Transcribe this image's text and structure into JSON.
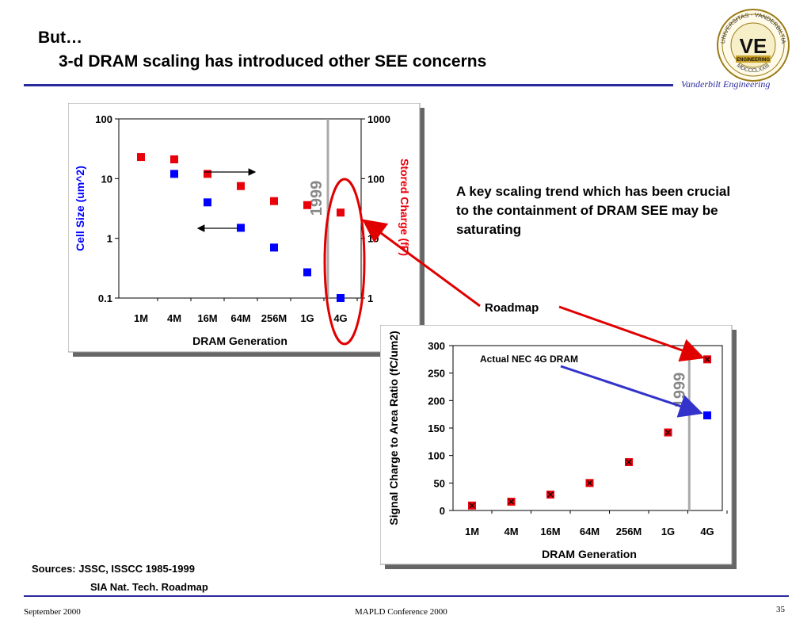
{
  "slide": {
    "title_line1": "But…",
    "title_line2": "3-d DRAM scaling has introduced other SEE concerns",
    "brand": "Vanderbilt Engineering",
    "note": "A key scaling trend which has been crucial to the containment of DRAM SEE may be saturating",
    "sources_line1": "Sources:  JSSC, ISSCC 1985-1999",
    "sources_line2": "SIA Nat. Tech. Roadmap",
    "footer_left": "September 2000",
    "footer_center": "MAPLD Conference 2000",
    "footer_right": "35",
    "logo_text": {
      "ring_top_left": "UNIVERSITAS",
      "ring_top_right": "VANDERBILTIA",
      "ring_bottom": "MDCCCLXXIII",
      "monogram": "VE",
      "banner": "ENGINEERING"
    }
  },
  "annotations": {
    "roadmap_label": "Roadmap",
    "actual_label": "Actual NEC 4G DRAM",
    "year_marker": "1999"
  },
  "colors": {
    "accent_blue": "#2a2aa0",
    "series_red": "#e8000b",
    "series_blue": "#0000ff",
    "marker_line": "#aaaaaa",
    "arrow_red": "#e00000",
    "arrow_blue": "#3333cc"
  },
  "chart_data": [
    {
      "type": "scatter",
      "categories": [
        "1M",
        "4M",
        "16M",
        "64M",
        "256M",
        "1G",
        "4G"
      ],
      "xlabel": "DRAM Generation",
      "ylabel": "Cell Size (um^2)",
      "ylabel_right": "Stored Charge (fF)",
      "y_scale": "log",
      "ylim": [
        0.1,
        100
      ],
      "yticks": [
        "100",
        "10",
        "1",
        "0.1"
      ],
      "y2_scale": "log",
      "y2lim": [
        1,
        1000
      ],
      "y2ticks": [
        "1000",
        "100",
        "10",
        "1"
      ],
      "grid": false,
      "series": [
        {
          "name": "Cell Size (um^2)",
          "axis": "left",
          "color": "#0000ff",
          "values": [
            null,
            12,
            4,
            1.5,
            0.7,
            0.27,
            0.1
          ]
        },
        {
          "name": "Stored Charge (fF)",
          "axis": "right",
          "color": "#e8000b",
          "values": [
            230,
            210,
            120,
            75,
            42,
            36,
            27
          ]
        }
      ],
      "vertical_marker": {
        "label": "1999",
        "between": [
          "1G",
          "4G"
        ]
      }
    },
    {
      "type": "scatter",
      "categories": [
        "1M",
        "4M",
        "16M",
        "64M",
        "256M",
        "1G",
        "4G"
      ],
      "xlabel": "DRAM Generation",
      "ylabel": "Signal Charge to Area Ratio (fC/um2)",
      "ylim": [
        0,
        300
      ],
      "yticks": [
        "300",
        "250",
        "200",
        "150",
        "100",
        "50",
        "0"
      ],
      "grid": false,
      "series": [
        {
          "name": "Roadmap",
          "color": "#e8000b",
          "values": [
            9,
            16,
            29,
            50,
            88,
            142,
            275
          ]
        },
        {
          "name": "Actual NEC 4G DRAM",
          "color": "#0000ff",
          "values": [
            null,
            null,
            null,
            null,
            null,
            null,
            173
          ]
        }
      ],
      "vertical_marker": {
        "label": "1999",
        "between": [
          "1G",
          "4G"
        ]
      }
    }
  ]
}
